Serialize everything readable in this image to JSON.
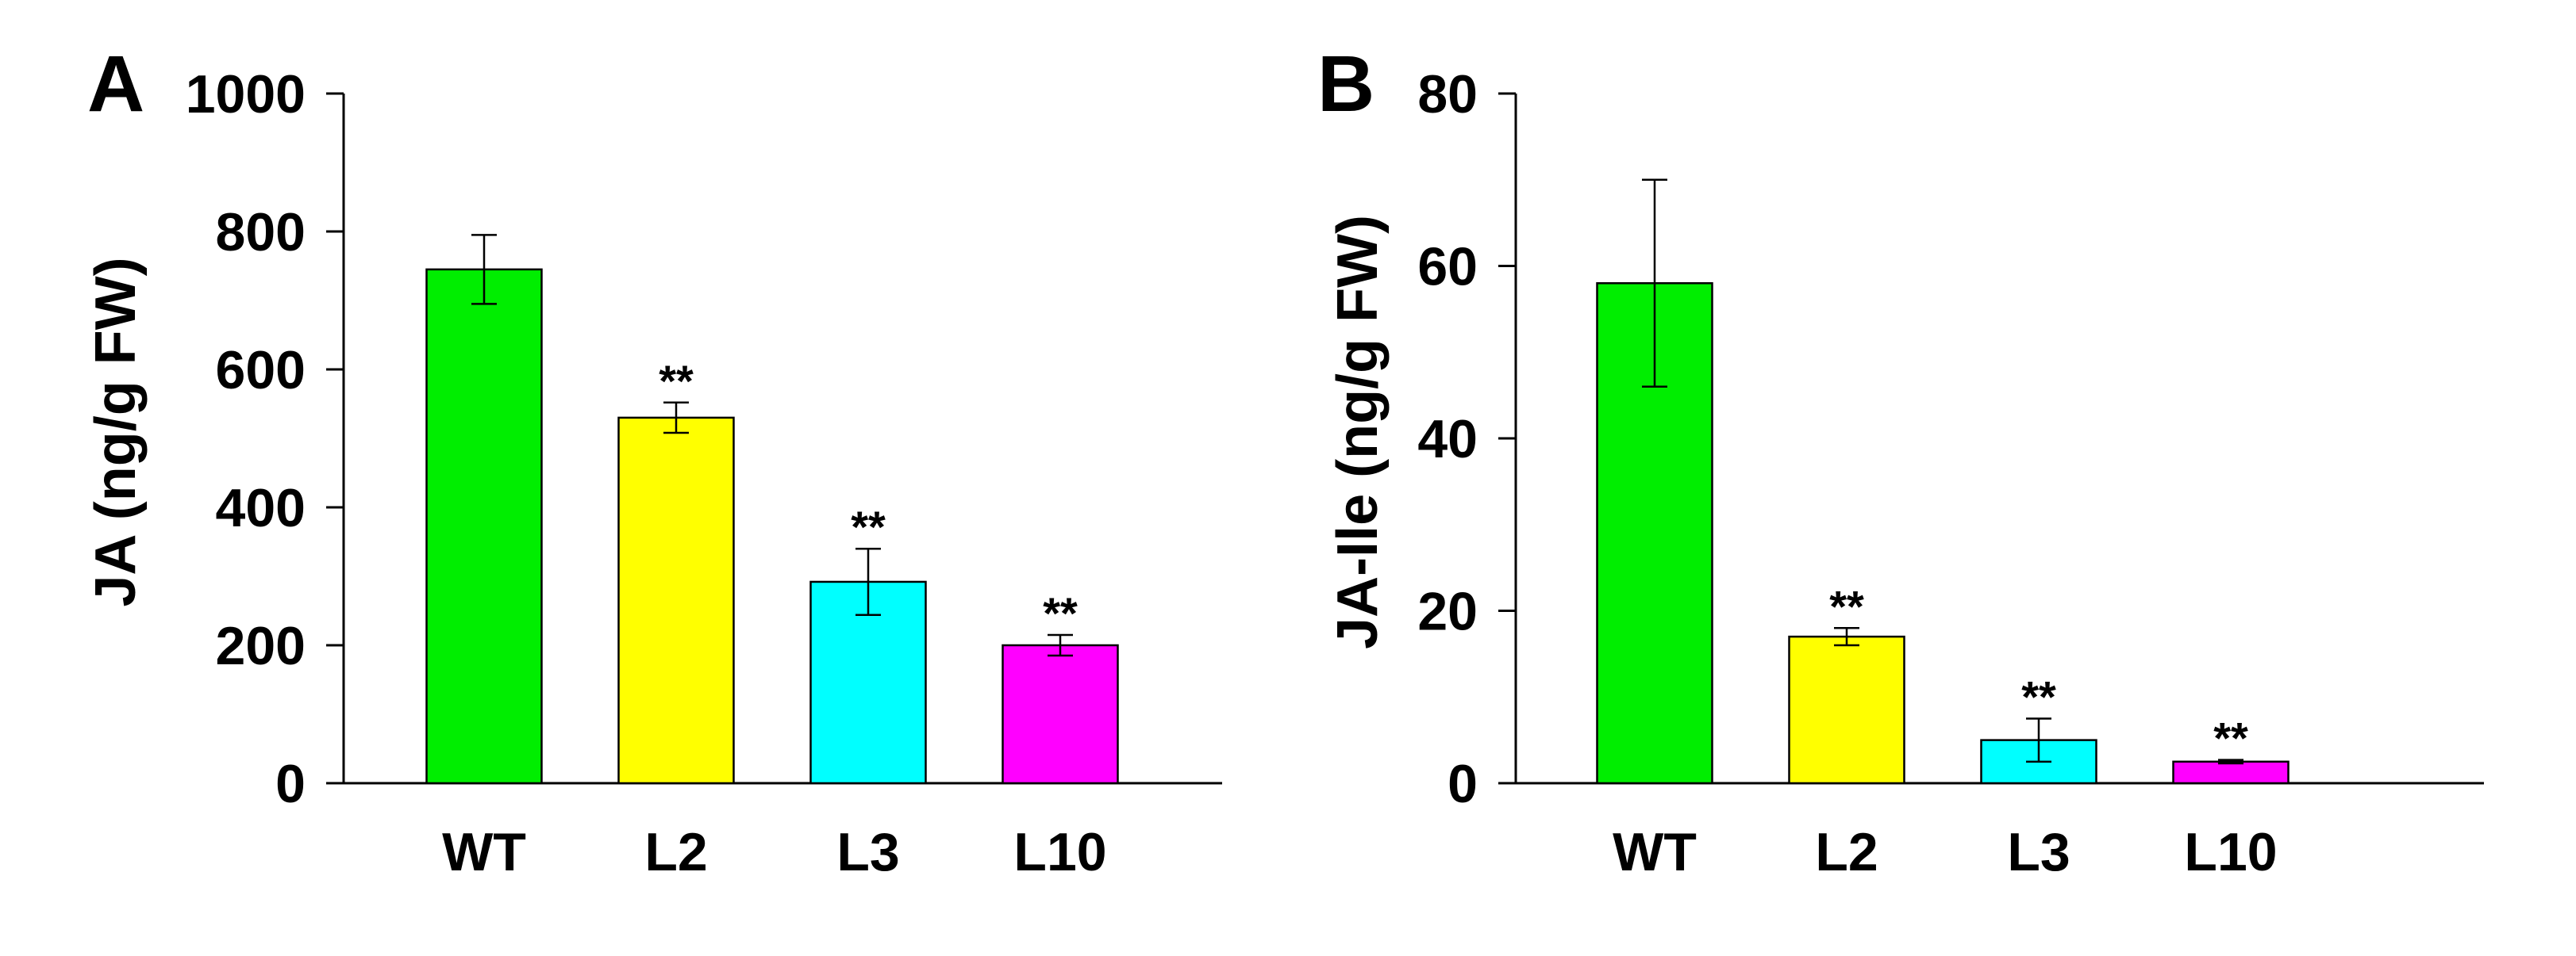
{
  "chart_data": [
    {
      "type": "bar",
      "panel_label": "A",
      "ylabel": "JA (ng/g FW)",
      "xlabel": "",
      "ylim": [
        0,
        1000
      ],
      "yticks": [
        0,
        200,
        400,
        600,
        800,
        1000
      ],
      "ytick_labels": [
        "0",
        "200",
        "400",
        "600",
        "800",
        "1000"
      ],
      "categories": [
        "WT",
        "L2",
        "L3",
        "L10"
      ],
      "values": [
        745,
        530,
        292,
        200
      ],
      "errors": [
        50,
        22,
        48,
        15
      ],
      "significance": [
        "",
        "**",
        "**",
        "**"
      ],
      "colors": [
        "#00ee00",
        "#ffff00",
        "#00ffff",
        "#ff00ff"
      ]
    },
    {
      "type": "bar",
      "panel_label": "B",
      "ylabel": "JA-Ile (ng/g FW)",
      "xlabel": "",
      "ylim": [
        0,
        80
      ],
      "yticks": [
        0,
        20,
        40,
        60,
        80
      ],
      "ytick_labels": [
        "0",
        "20",
        "40",
        "60",
        "80"
      ],
      "categories": [
        "WT",
        "L2",
        "L3",
        "L10"
      ],
      "values": [
        58,
        17,
        5,
        2.5
      ],
      "errors": [
        12,
        1,
        2.5,
        0.2
      ],
      "significance": [
        "",
        "**",
        "**",
        "**"
      ],
      "colors": [
        "#00ee00",
        "#ffff00",
        "#00ffff",
        "#ff00ff"
      ]
    }
  ]
}
